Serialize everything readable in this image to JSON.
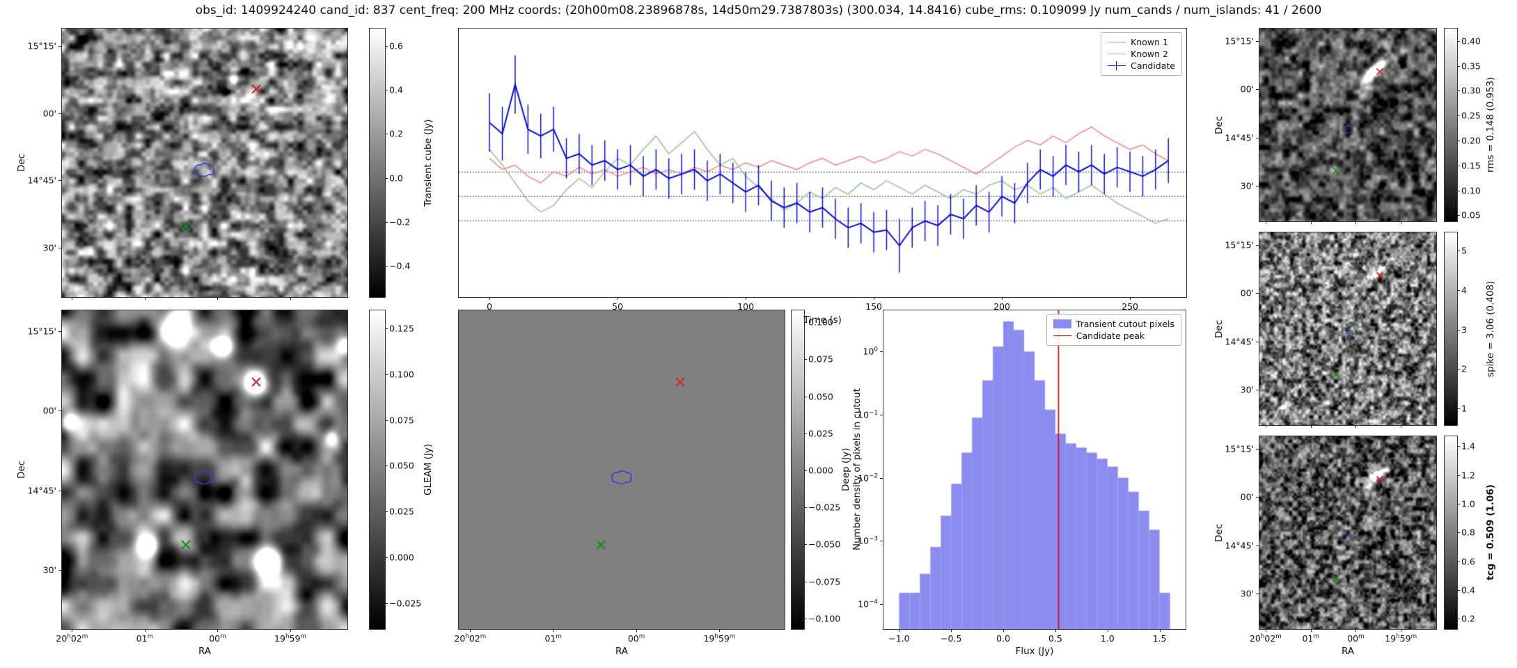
{
  "title": "obs_id: 1409924240 cand_id: 837 cent_freq: 200 MHz coords: (20h00m08.23896878s, 14d50m29.7387803s) (300.034, 14.8416) cube_rms: 0.109099 Jy num_cands / num_islands: 41 / 2600",
  "axes": {
    "dec_label": "Dec",
    "ra_label": "RA",
    "dec_ticks": {
      "labels": [
        "15°15'",
        "00'",
        "14°45'",
        "30'"
      ],
      "pos": [
        0.065,
        0.315,
        0.565,
        0.815
      ]
    },
    "ra_ticks": {
      "labels": [
        "20h02m",
        "01m",
        "00m",
        "19h59m"
      ],
      "pos": [
        0.035,
        0.29,
        0.545,
        0.8
      ]
    }
  },
  "panels": {
    "transient": {
      "cbar_label": "Transient cube (Jy)",
      "vmin": -0.55,
      "vmax": 0.68,
      "cbar_ticks": [
        "0.6",
        "0.4",
        "0.2",
        "0.0",
        "−0.2",
        "−0.4"
      ],
      "cbar_tick_values": [
        0.6,
        0.4,
        0.2,
        0.0,
        -0.2,
        -0.4
      ]
    },
    "gleam": {
      "cbar_label": "GLEAM (Jy)",
      "vmin": -0.04,
      "vmax": 0.135,
      "cbar_ticks": [
        "0.125",
        "0.100",
        "0.075",
        "0.050",
        "0.025",
        "0.000",
        "−0.025"
      ],
      "cbar_tick_values": [
        0.125,
        0.1,
        0.075,
        0.05,
        0.025,
        0.0,
        -0.025
      ]
    },
    "deep": {
      "cbar_label": "Deep (Jy)",
      "vmin": -0.108,
      "vmax": 0.108,
      "cbar_ticks": [
        "0.100",
        "0.075",
        "0.050",
        "0.025",
        "0.000",
        "−0.025",
        "−0.050",
        "−0.075",
        "−0.100"
      ],
      "cbar_tick_values": [
        0.1,
        0.075,
        0.05,
        0.025,
        0.0,
        -0.025,
        -0.05,
        -0.075,
        -0.1
      ]
    },
    "rms": {
      "cbar_label": "rms = 0.148 (0.953)",
      "vmin": 0.035,
      "vmax": 0.425,
      "cbar_ticks": [
        "0.40",
        "0.35",
        "0.30",
        "0.25",
        "0.20",
        "0.15",
        "0.10",
        "0.05"
      ],
      "cbar_tick_values": [
        0.4,
        0.35,
        0.3,
        0.25,
        0.2,
        0.15,
        0.1,
        0.05
      ]
    },
    "spike": {
      "cbar_label": "spike = 3.06 (0.408)",
      "vmin": 0.55,
      "vmax": 5.45,
      "cbar_ticks": [
        "5",
        "4",
        "3",
        "2",
        "1"
      ],
      "cbar_tick_values": [
        5,
        4,
        3,
        2,
        1
      ]
    },
    "tcg": {
      "cbar_label": "tcg = 0.509 (1.06)",
      "vmin": 0.12,
      "vmax": 1.47,
      "cbar_ticks": [
        "1.4",
        "1.2",
        "1.0",
        "0.8",
        "0.6",
        "0.4",
        "0.2"
      ],
      "cbar_tick_values": [
        1.4,
        1.2,
        1.0,
        0.8,
        0.6,
        0.4,
        0.2
      ]
    }
  },
  "markers": {
    "red_x": [
      0.68,
      0.225
    ],
    "green_x": [
      0.435,
      0.735
    ],
    "contour": [
      0.5,
      0.525
    ]
  },
  "colors": {
    "red_marker": "#d62728",
    "green_marker": "#1a8c1a",
    "contour": "#3a3ad0"
  },
  "chart_data": [
    {
      "type": "line",
      "title": "",
      "xlabel": "Time (s)",
      "ylabel": "",
      "xlim": [
        -12,
        272
      ],
      "ylim": [
        -0.45,
        0.75
      ],
      "xticks": [
        0,
        50,
        100,
        150,
        200,
        250
      ],
      "hlines": [
        0.109,
        0.0,
        -0.109
      ],
      "legend_position": "upper right",
      "x": [
        0,
        5,
        10,
        15,
        20,
        25,
        30,
        35,
        40,
        45,
        50,
        55,
        60,
        65,
        70,
        75,
        80,
        85,
        90,
        95,
        100,
        105,
        110,
        115,
        120,
        125,
        130,
        135,
        140,
        145,
        150,
        155,
        160,
        165,
        170,
        175,
        180,
        185,
        190,
        195,
        200,
        205,
        210,
        215,
        220,
        225,
        230,
        235,
        240,
        245,
        250,
        255,
        260,
        265
      ],
      "series": [
        {
          "name": "Known 1",
          "color": "#f08080",
          "values": [
            0.17,
            0.12,
            0.14,
            0.09,
            0.06,
            0.11,
            0.09,
            0.13,
            0.1,
            0.12,
            0.09,
            0.11,
            0.13,
            0.1,
            0.12,
            0.1,
            0.13,
            0.11,
            0.14,
            0.12,
            0.15,
            0.13,
            0.16,
            0.14,
            0.12,
            0.15,
            0.17,
            0.14,
            0.16,
            0.18,
            0.15,
            0.17,
            0.2,
            0.18,
            0.21,
            0.19,
            0.16,
            0.13,
            0.1,
            0.14,
            0.18,
            0.22,
            0.25,
            0.23,
            0.27,
            0.24,
            0.28,
            0.31,
            0.27,
            0.24,
            0.21,
            0.23,
            0.19,
            0.16
          ]
        },
        {
          "name": "Known 2",
          "color": "#8fbc8f",
          "values": [
            0.21,
            0.14,
            0.06,
            -0.02,
            -0.07,
            -0.04,
            0.03,
            0.08,
            0.04,
            0.11,
            0.17,
            0.14,
            0.21,
            0.27,
            0.19,
            0.24,
            0.29,
            0.21,
            0.14,
            0.17,
            0.09,
            0.04,
            -0.01,
            -0.06,
            -0.03,
            0.02,
            -0.01,
            0.04,
            0.01,
            0.06,
            0.03,
            0.07,
            0.04,
            0.01,
            0.05,
            0.02,
            -0.01,
            0.03,
            0.01,
            0.05,
            0.07,
            0.03,
            0.05,
            0.01,
            0.04,
            -0.01,
            0.02,
            0.05,
            0.01,
            -0.03,
            -0.06,
            -0.09,
            -0.12,
            -0.1
          ]
        },
        {
          "name": "Candidate",
          "color": "#0000dd",
          "values": [
            0.33,
            0.28,
            0.5,
            0.3,
            0.27,
            0.3,
            0.17,
            0.19,
            0.14,
            0.16,
            0.12,
            0.14,
            0.09,
            0.12,
            0.08,
            0.1,
            0.12,
            0.07,
            0.1,
            0.06,
            0.02,
            0.05,
            -0.02,
            -0.05,
            -0.03,
            -0.07,
            -0.05,
            -0.1,
            -0.14,
            -0.12,
            -0.16,
            -0.15,
            -0.22,
            -0.14,
            -0.11,
            -0.13,
            -0.08,
            -0.1,
            -0.04,
            -0.07,
            0.0,
            -0.03,
            0.06,
            0.12,
            0.09,
            0.14,
            0.11,
            0.14,
            0.1,
            0.13,
            0.11,
            0.09,
            0.12,
            0.16
          ],
          "errors": [
            0.13,
            0.12,
            0.13,
            0.11,
            0.1,
            0.1,
            0.09,
            0.09,
            0.09,
            0.09,
            0.09,
            0.09,
            0.09,
            0.09,
            0.09,
            0.09,
            0.09,
            0.09,
            0.09,
            0.09,
            0.09,
            0.09,
            0.09,
            0.09,
            0.09,
            0.09,
            0.09,
            0.09,
            0.09,
            0.09,
            0.09,
            0.09,
            0.12,
            0.09,
            0.09,
            0.09,
            0.09,
            0.09,
            0.09,
            0.09,
            0.09,
            0.09,
            0.09,
            0.09,
            0.09,
            0.09,
            0.09,
            0.09,
            0.09,
            0.09,
            0.09,
            0.09,
            0.09,
            0.1
          ]
        }
      ]
    },
    {
      "type": "bar",
      "title": "",
      "xlabel": "Flux (Jy)",
      "ylabel": "Number density of pixels in cutout",
      "yscale": "log",
      "xlim": [
        -1.15,
        1.75
      ],
      "ylim": [
        4e-05,
        4.5
      ],
      "xticks": [
        -1.0,
        -0.5,
        0.0,
        0.5,
        1.0,
        1.5
      ],
      "xtick_labels": [
        "−1.0",
        "−0.5",
        "0.0",
        "0.5",
        "1.0",
        "1.5"
      ],
      "ytick_exponents": [
        0,
        -1,
        -2,
        -3,
        -4
      ],
      "bin_start": -1.0,
      "bin_width": 0.1,
      "values": [
        0.00015,
        0.00015,
        0.0003,
        0.0008,
        0.0025,
        0.008,
        0.025,
        0.09,
        0.35,
        1.2,
        3.0,
        2.2,
        1.0,
        0.35,
        0.12,
        0.05,
        0.035,
        0.03,
        0.025,
        0.02,
        0.015,
        0.01,
        0.006,
        0.003,
        0.0015,
        0.00015
      ],
      "bar_color": "#8c8cf0",
      "vline": {
        "x": 0.53,
        "color": "#e00000"
      },
      "legend": [
        "Transient cutout pixels",
        "Candidate peak"
      ],
      "legend_position": "upper right"
    }
  ]
}
